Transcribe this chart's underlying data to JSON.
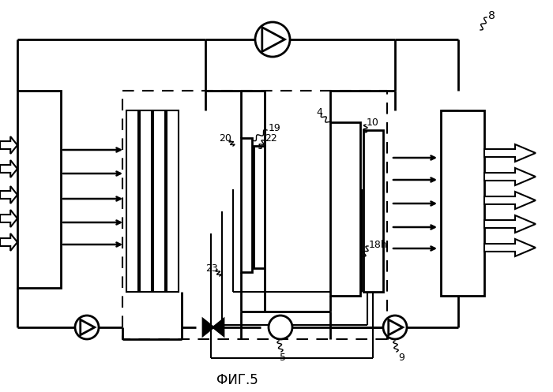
{
  "bg": "#ffffff",
  "lc": "#000000",
  "fig_label": "ФИГ.5"
}
